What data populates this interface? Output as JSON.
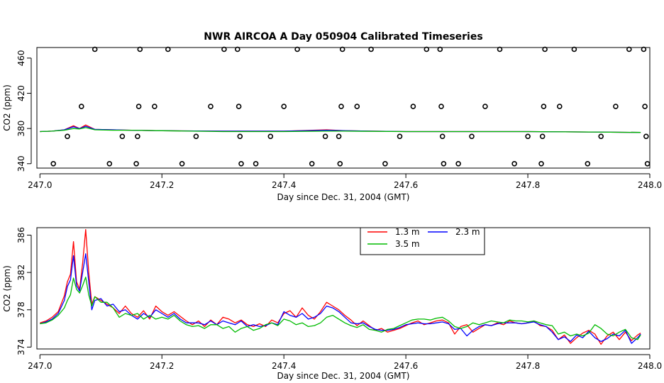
{
  "chart_data": [
    {
      "type": "scatter",
      "title": "NWR AIRCOA A  Day 050904  Calibrated Timeseries",
      "xlabel": "Day since Dec. 31, 2004 (GMT)",
      "ylabel": "CO2 (ppm)",
      "xlim": [
        246.995,
        248.0
      ],
      "ylim": [
        335,
        472
      ],
      "x_ticks": [
        247.0,
        247.2,
        247.4,
        247.6,
        247.8,
        248.0
      ],
      "x_tick_labels": [
        "247.0",
        "247.2",
        "247.4",
        "247.6",
        "247.8",
        "248.0"
      ],
      "y_ticks": [
        340,
        380,
        420,
        460
      ],
      "y_tick_labels": [
        "340",
        "380",
        "420",
        "460"
      ],
      "calibration_points": [
        [
          247.022,
          340
        ],
        [
          247.045,
          371
        ],
        [
          247.068,
          405
        ],
        [
          247.09,
          470
        ],
        [
          247.114,
          340
        ],
        [
          247.135,
          371
        ],
        [
          247.158,
          340
        ],
        [
          247.16,
          371
        ],
        [
          247.162,
          405
        ],
        [
          247.164,
          470
        ],
        [
          247.188,
          405
        ],
        [
          247.21,
          470
        ],
        [
          247.233,
          340
        ],
        [
          247.256,
          371
        ],
        [
          247.28,
          405
        ],
        [
          247.302,
          470
        ],
        [
          247.324,
          470
        ],
        [
          247.326,
          405
        ],
        [
          247.328,
          371
        ],
        [
          247.33,
          340
        ],
        [
          247.354,
          340
        ],
        [
          247.378,
          371
        ],
        [
          247.4,
          405
        ],
        [
          247.422,
          470
        ],
        [
          247.446,
          340
        ],
        [
          247.468,
          371
        ],
        [
          247.49,
          371
        ],
        [
          247.492,
          340
        ],
        [
          247.494,
          405
        ],
        [
          247.496,
          470
        ],
        [
          247.52,
          405
        ],
        [
          247.543,
          470
        ],
        [
          247.566,
          340
        ],
        [
          247.59,
          371
        ],
        [
          247.612,
          405
        ],
        [
          247.634,
          470
        ],
        [
          247.656,
          470
        ],
        [
          247.658,
          405
        ],
        [
          247.66,
          371
        ],
        [
          247.662,
          340
        ],
        [
          247.686,
          340
        ],
        [
          247.708,
          371
        ],
        [
          247.73,
          405
        ],
        [
          247.754,
          470
        ],
        [
          247.778,
          340
        ],
        [
          247.8,
          371
        ],
        [
          247.822,
          340
        ],
        [
          247.824,
          371
        ],
        [
          247.826,
          405
        ],
        [
          247.828,
          470
        ],
        [
          247.852,
          405
        ],
        [
          247.876,
          470
        ],
        [
          247.898,
          340
        ],
        [
          247.92,
          371
        ],
        [
          247.944,
          405
        ],
        [
          247.966,
          470
        ],
        [
          247.99,
          470
        ],
        [
          247.992,
          405
        ],
        [
          247.994,
          371
        ],
        [
          247.996,
          340
        ]
      ],
      "series": [
        {
          "color": "#ff0000",
          "x": [
            247.0,
            247.02,
            247.04,
            247.055,
            247.065,
            247.075,
            247.09,
            247.12,
            247.15,
            247.2,
            247.3,
            247.4,
            247.47,
            247.5,
            247.6,
            247.7,
            247.8,
            247.9,
            247.985
          ],
          "y": [
            376.5,
            377,
            378.5,
            383,
            380,
            384,
            379,
            378.5,
            378,
            377.5,
            377,
            377,
            378.5,
            377.5,
            376.5,
            376.5,
            376.5,
            376,
            375.5
          ]
        },
        {
          "color": "#0000ff",
          "x": [
            247.0,
            247.02,
            247.04,
            247.055,
            247.065,
            247.075,
            247.09,
            247.12,
            247.15,
            247.2,
            247.3,
            247.4,
            247.47,
            247.5,
            247.6,
            247.7,
            247.8,
            247.9,
            247.985
          ],
          "y": [
            376.5,
            377,
            378.5,
            382,
            380,
            382.5,
            379,
            378.5,
            378,
            377.5,
            377,
            377,
            378,
            377.5,
            376.5,
            376.5,
            376.5,
            376,
            375.5
          ]
        },
        {
          "color": "#00bb00",
          "x": [
            247.0,
            247.02,
            247.04,
            247.055,
            247.065,
            247.075,
            247.09,
            247.12,
            247.15,
            247.2,
            247.3,
            247.4,
            247.47,
            247.5,
            247.6,
            247.7,
            247.8,
            247.9,
            247.985
          ],
          "y": [
            376.5,
            377,
            378,
            380,
            379.5,
            381,
            378.5,
            378,
            378,
            377.5,
            376.5,
            376.5,
            377,
            377,
            376.5,
            376.5,
            376.5,
            376,
            375.5
          ]
        }
      ]
    },
    {
      "type": "line",
      "xlabel": "Day since Dec. 31, 2004 (GMT)",
      "ylabel": "CO2 (ppm)",
      "xlim": [
        246.995,
        248.0
      ],
      "ylim": [
        373.8,
        386.8
      ],
      "x_ticks": [
        247.0,
        247.2,
        247.4,
        247.6,
        247.8,
        248.0
      ],
      "x_tick_labels": [
        "247.0",
        "247.2",
        "247.4",
        "247.6",
        "247.8",
        "248.0"
      ],
      "y_ticks": [
        374,
        378,
        382,
        386
      ],
      "y_tick_labels": [
        "374",
        "378",
        "382",
        "386"
      ],
      "legend_position": "top-center",
      "x": [
        247.0,
        247.01,
        247.02,
        247.03,
        247.04,
        247.045,
        247.05,
        247.055,
        247.06,
        247.065,
        247.07,
        247.075,
        247.08,
        247.085,
        247.09,
        247.1,
        247.11,
        247.12,
        247.13,
        247.14,
        247.15,
        247.16,
        247.17,
        247.18,
        247.19,
        247.2,
        247.21,
        247.22,
        247.23,
        247.24,
        247.25,
        247.26,
        247.27,
        247.28,
        247.29,
        247.3,
        247.31,
        247.32,
        247.33,
        247.34,
        247.35,
        247.36,
        247.37,
        247.38,
        247.39,
        247.4,
        247.41,
        247.42,
        247.43,
        247.44,
        247.45,
        247.46,
        247.47,
        247.48,
        247.49,
        247.5,
        247.51,
        247.52,
        247.53,
        247.54,
        247.55,
        247.56,
        247.57,
        247.58,
        247.59,
        247.6,
        247.61,
        247.62,
        247.63,
        247.64,
        247.65,
        247.66,
        247.67,
        247.68,
        247.69,
        247.7,
        247.71,
        247.72,
        247.73,
        247.74,
        247.75,
        247.76,
        247.77,
        247.78,
        247.79,
        247.8,
        247.81,
        247.82,
        247.83,
        247.84,
        247.85,
        247.86,
        247.87,
        247.88,
        247.89,
        247.9,
        247.91,
        247.92,
        247.93,
        247.94,
        247.95,
        247.96,
        247.97,
        247.98,
        247.985
      ],
      "series": [
        {
          "name": "1.3 m",
          "color": "#ff0000",
          "values": [
            376.6,
            376.8,
            377.2,
            377.8,
            379.5,
            381.0,
            381.8,
            385.3,
            381.0,
            380.2,
            383.0,
            386.6,
            382.0,
            378.6,
            379.4,
            379.0,
            378.6,
            378.2,
            377.6,
            378.4,
            377.6,
            377.2,
            377.9,
            377.0,
            378.4,
            377.8,
            377.4,
            377.8,
            377.3,
            376.8,
            376.4,
            376.8,
            376.2,
            376.9,
            376.4,
            377.2,
            377.0,
            376.6,
            376.9,
            376.4,
            376.2,
            376.5,
            376.2,
            376.9,
            376.6,
            377.6,
            377.9,
            377.2,
            378.2,
            377.4,
            377.0,
            377.8,
            378.8,
            378.4,
            378.0,
            377.4,
            376.9,
            376.3,
            376.8,
            376.3,
            375.8,
            376.0,
            375.6,
            375.8,
            376.0,
            376.3,
            376.6,
            376.8,
            376.4,
            376.6,
            376.8,
            376.9,
            376.6,
            375.4,
            376.2,
            376.4,
            375.6,
            376.0,
            376.4,
            376.3,
            376.6,
            376.4,
            376.8,
            376.6,
            376.5,
            376.6,
            376.8,
            376.3,
            376.2,
            375.8,
            374.8,
            375.3,
            374.4,
            375.0,
            375.5,
            375.8,
            375.4,
            374.3,
            375.2,
            375.6,
            374.8,
            375.6,
            374.7,
            375.3,
            375.5
          ]
        },
        {
          "name": "2.3 m",
          "color": "#0000ff",
          "values": [
            376.5,
            376.7,
            377.0,
            377.6,
            379.0,
            380.5,
            381.2,
            383.8,
            380.6,
            380.0,
            382.0,
            384.0,
            381.0,
            378.0,
            379.0,
            379.2,
            378.4,
            378.6,
            377.8,
            378.0,
            377.4,
            377.0,
            377.6,
            377.2,
            378.0,
            377.6,
            377.2,
            377.6,
            377.0,
            376.6,
            376.6,
            376.6,
            376.4,
            376.8,
            376.4,
            376.8,
            376.6,
            376.4,
            376.8,
            376.2,
            376.4,
            376.2,
            376.3,
            376.6,
            376.4,
            377.8,
            377.4,
            377.2,
            377.6,
            377.0,
            377.2,
            377.6,
            378.4,
            378.2,
            377.8,
            377.2,
            376.6,
            376.5,
            376.6,
            376.2,
            375.9,
            375.8,
            375.8,
            375.9,
            376.1,
            376.4,
            376.5,
            376.6,
            376.5,
            376.5,
            376.6,
            376.7,
            376.5,
            375.9,
            376.0,
            375.2,
            375.8,
            376.2,
            376.4,
            376.3,
            376.5,
            376.6,
            376.6,
            376.6,
            376.5,
            376.6,
            376.7,
            376.4,
            376.2,
            375.6,
            374.8,
            375.1,
            374.6,
            375.3,
            375.0,
            375.7,
            375.0,
            374.6,
            374.9,
            375.4,
            375.2,
            375.8,
            374.4,
            375.0,
            375.4
          ]
        },
        {
          "name": "3.5 m",
          "color": "#00bb00",
          "values": [
            376.5,
            376.6,
            376.9,
            377.4,
            378.2,
            379.0,
            379.6,
            381.4,
            380.2,
            379.8,
            380.6,
            381.5,
            379.6,
            378.4,
            379.4,
            378.8,
            378.8,
            378.2,
            377.2,
            377.6,
            377.4,
            377.6,
            377.0,
            377.4,
            377.0,
            377.2,
            377.0,
            377.4,
            376.8,
            376.4,
            376.2,
            376.3,
            376.0,
            376.4,
            376.4,
            376.0,
            376.2,
            375.6,
            376.0,
            376.2,
            375.8,
            376.0,
            376.4,
            376.6,
            376.3,
            377.0,
            376.8,
            376.4,
            376.6,
            376.2,
            376.3,
            376.6,
            377.2,
            377.4,
            377.0,
            376.6,
            376.3,
            376.1,
            376.4,
            375.9,
            375.8,
            375.6,
            375.9,
            376.0,
            376.3,
            376.6,
            376.9,
            377.0,
            377.0,
            376.9,
            377.1,
            377.2,
            376.8,
            376.2,
            376.0,
            376.2,
            376.6,
            376.4,
            376.6,
            376.8,
            376.7,
            376.6,
            376.9,
            376.8,
            376.8,
            376.7,
            376.8,
            376.6,
            376.4,
            376.3,
            375.4,
            375.6,
            375.2,
            375.4,
            375.2,
            375.5,
            376.4,
            376.0,
            375.4,
            375.2,
            375.6,
            375.9,
            375.0,
            374.8,
            375.3
          ]
        }
      ]
    }
  ]
}
